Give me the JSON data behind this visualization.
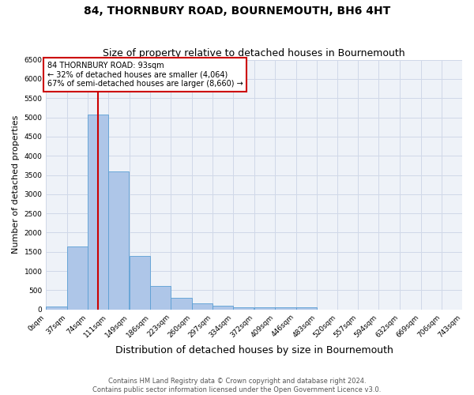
{
  "title": "84, THORNBURY ROAD, BOURNEMOUTH, BH6 4HT",
  "subtitle": "Size of property relative to detached houses in Bournemouth",
  "xlabel": "Distribution of detached houses by size in Bournemouth",
  "ylabel": "Number of detached properties",
  "footer_line1": "Contains HM Land Registry data © Crown copyright and database right 2024.",
  "footer_line2": "Contains public sector information licensed under the Open Government Licence v3.0.",
  "bar_edges": [
    0,
    37,
    74,
    111,
    149,
    186,
    223,
    260,
    297,
    334,
    372,
    409,
    446,
    483,
    520,
    557,
    594,
    632,
    669,
    706,
    743
  ],
  "bar_values": [
    75,
    1640,
    5080,
    3590,
    1400,
    620,
    310,
    150,
    100,
    60,
    50,
    50,
    50,
    0,
    0,
    0,
    0,
    0,
    0,
    0
  ],
  "bar_color": "#aec6e8",
  "bar_edge_color": "#5a9fd4",
  "property_line_x": 93,
  "property_line_color": "#cc0000",
  "annotation_text": "84 THORNBURY ROAD: 93sqm\n← 32% of detached houses are smaller (4,064)\n67% of semi-detached houses are larger (8,660) →",
  "annotation_box_color": "#cc0000",
  "annotation_fill": "white",
  "ylim": [
    0,
    6500
  ],
  "yticks": [
    0,
    500,
    1000,
    1500,
    2000,
    2500,
    3000,
    3500,
    4000,
    4500,
    5000,
    5500,
    6000,
    6500
  ],
  "grid_color": "#d0d8e8",
  "background_color": "#eef2f8",
  "title_fontsize": 10,
  "subtitle_fontsize": 9,
  "ylabel_fontsize": 8,
  "xlabel_fontsize": 9,
  "annotation_fontsize": 7,
  "tick_fontsize": 6.5,
  "footer_fontsize": 6
}
